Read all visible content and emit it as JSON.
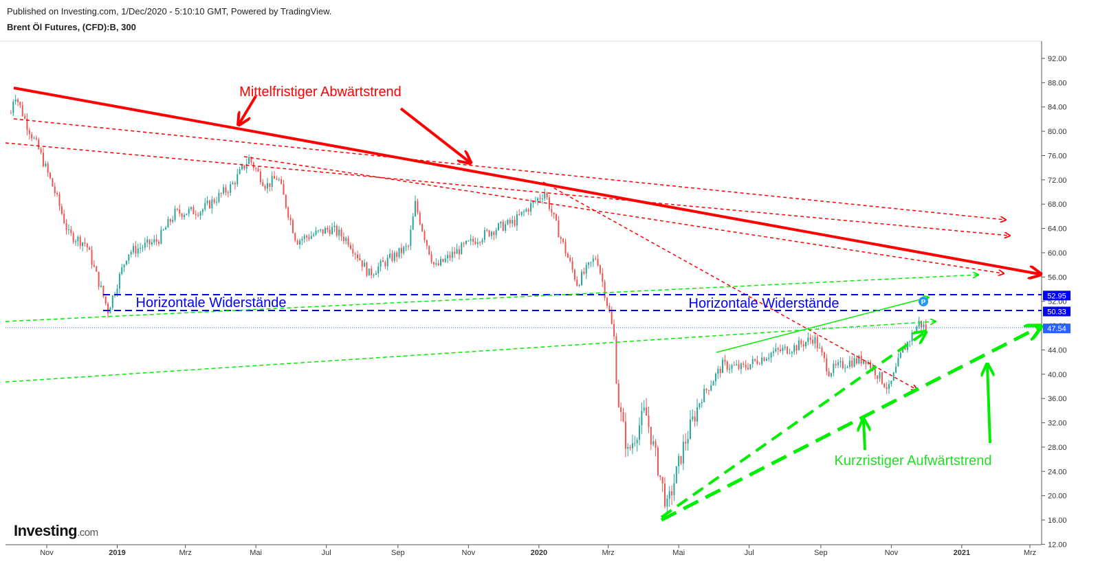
{
  "header": {
    "published": "Published on Investing.com, 1/Dec/2020 - 5:10:10 GMT, Powered by TradingView.",
    "instrument": "Brent Öl Futures, (CFD):B, 300"
  },
  "logo": {
    "brand": "Investing",
    "suffix": ".com"
  },
  "colors": {
    "bull": "#26a69a",
    "bear": "#ef5350",
    "downtrend": "#ff0000",
    "uptrend": "#00ee00",
    "resistance": "#0000ff",
    "price_label": "#2962ff"
  },
  "chart_data": {
    "type": "candlestick",
    "timeframe": "300",
    "ylim": [
      12,
      94
    ],
    "yticks": [
      "92.00",
      "88.00",
      "84.00",
      "80.00",
      "76.00",
      "72.00",
      "68.00",
      "64.00",
      "60.00",
      "56.00",
      "52.00",
      "48.00",
      "44.00",
      "40.00",
      "36.00",
      "32.00",
      "28.00",
      "24.00",
      "20.00",
      "16.00",
      "12.00"
    ],
    "xticks": [
      {
        "label": "Nov",
        "bold": false
      },
      {
        "label": "2019",
        "bold": true
      },
      {
        "label": "Mrz",
        "bold": false
      },
      {
        "label": "Mai",
        "bold": false
      },
      {
        "label": "Jul",
        "bold": false
      },
      {
        "label": "Sep",
        "bold": false
      },
      {
        "label": "Nov",
        "bold": false
      },
      {
        "label": "2020",
        "bold": true
      },
      {
        "label": "Mrz",
        "bold": false
      },
      {
        "label": "Mai",
        "bold": false
      },
      {
        "label": "Jul",
        "bold": false
      },
      {
        "label": "Sep",
        "bold": false
      },
      {
        "label": "Nov",
        "bold": false
      },
      {
        "label": "2021",
        "bold": true
      },
      {
        "label": "Mrz",
        "bold": false
      }
    ],
    "price_path": [
      [
        "2018-10-01",
        83.0
      ],
      [
        "2018-10-04",
        86.5
      ],
      [
        "2018-10-15",
        81.0
      ],
      [
        "2018-10-25",
        77.0
      ],
      [
        "2018-11-08",
        70.0
      ],
      [
        "2018-11-20",
        63.0
      ],
      [
        "2018-12-05",
        61.5
      ],
      [
        "2018-12-24",
        50.5
      ],
      [
        "2019-01-10",
        60.0
      ],
      [
        "2019-02-05",
        62.0
      ],
      [
        "2019-02-20",
        66.5
      ],
      [
        "2019-03-15",
        67.0
      ],
      [
        "2019-04-10",
        71.0
      ],
      [
        "2019-04-25",
        75.5
      ],
      [
        "2019-05-10",
        71.0
      ],
      [
        "2019-05-20",
        72.5
      ],
      [
        "2019-06-05",
        62.0
      ],
      [
        "2019-06-20",
        63.0
      ],
      [
        "2019-07-05",
        64.0
      ],
      [
        "2019-07-20",
        62.0
      ],
      [
        "2019-08-07",
        56.5
      ],
      [
        "2019-08-25",
        59.0
      ],
      [
        "2019-09-10",
        61.0
      ],
      [
        "2019-09-16",
        68.0
      ],
      [
        "2019-09-25",
        62.0
      ],
      [
        "2019-10-03",
        57.5
      ],
      [
        "2019-10-20",
        60.0
      ],
      [
        "2019-11-10",
        62.5
      ],
      [
        "2019-11-25",
        64.0
      ],
      [
        "2019-12-10",
        65.0
      ],
      [
        "2020-01-06",
        70.0
      ],
      [
        "2020-01-15",
        65.0
      ],
      [
        "2020-02-03",
        55.0
      ],
      [
        "2020-02-20",
        59.5
      ],
      [
        "2020-03-02",
        50.0
      ],
      [
        "2020-03-06",
        46.0
      ],
      [
        "2020-03-09",
        36.0
      ],
      [
        "2020-03-18",
        27.0
      ],
      [
        "2020-04-02",
        34.0
      ],
      [
        "2020-04-21",
        18.0
      ],
      [
        "2020-05-05",
        28.0
      ],
      [
        "2020-05-20",
        36.0
      ],
      [
        "2020-06-08",
        41.5
      ],
      [
        "2020-06-25",
        41.0
      ],
      [
        "2020-07-20",
        43.5
      ],
      [
        "2020-08-10",
        44.5
      ],
      [
        "2020-08-26",
        46.0
      ],
      [
        "2020-09-08",
        40.5
      ],
      [
        "2020-09-25",
        42.0
      ],
      [
        "2020-10-10",
        42.5
      ],
      [
        "2020-10-30",
        37.5
      ],
      [
        "2020-11-10",
        43.5
      ],
      [
        "2020-11-25",
        48.5
      ],
      [
        "2020-12-01",
        47.5
      ]
    ],
    "price_labels": [
      {
        "value": 52.95,
        "text": "52.95",
        "color": "#0000ff"
      },
      {
        "value": 50.33,
        "text": "50.33",
        "color": "#0000ff"
      },
      {
        "value": 47.54,
        "text": "47.54",
        "color": "#2962ff"
      }
    ],
    "last_price": 47.54,
    "resistance_levels": [
      52.95,
      50.33
    ],
    "annotations": [
      {
        "text": "Mittelfristiger Abwärtstrend",
        "color": "#ff0000"
      },
      {
        "text": "Horizontale Widerstände",
        "color": "#0000ff"
      },
      {
        "text": "Horizontale Widerstände",
        "color": "#0000ff"
      },
      {
        "text": "Kurzristiger Aufwärtstrend",
        "color": "#00dd00"
      }
    ],
    "pivot_marker": "P"
  }
}
